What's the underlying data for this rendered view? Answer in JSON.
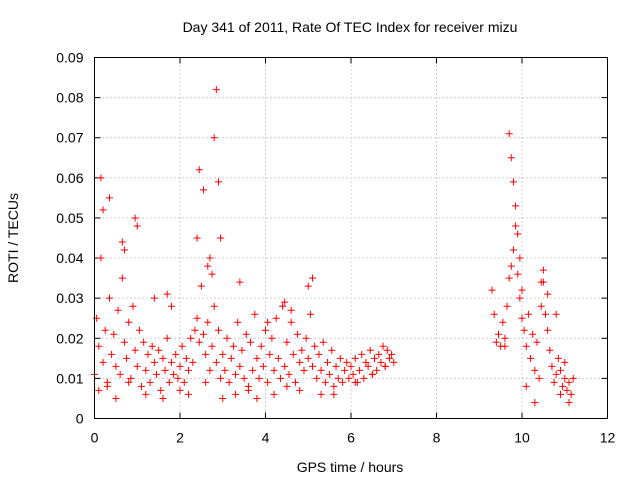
{
  "chart_data": {
    "type": "scatter",
    "title": "Day 341 of 2011, Rate Of TEC Index for receiver mizu",
    "xlabel": "GPS time / hours",
    "ylabel": "ROTI / TECUs",
    "xlim": [
      0,
      12
    ],
    "ylim": [
      0,
      0.09
    ],
    "x_ticks": [
      "0",
      "2",
      "4",
      "6",
      "8",
      "10",
      "12"
    ],
    "y_ticks": [
      "0",
      "0.01",
      "0.02",
      "0.03",
      "0.04",
      "0.05",
      "0.06",
      "0.07",
      "0.08",
      "0.09"
    ],
    "grid": true,
    "marker": "+",
    "series": [
      {
        "name": "ROTI",
        "color": "#ff0000",
        "x": [
          0.0,
          0.05,
          0.1,
          0.15,
          0.2,
          0.25,
          0.3,
          0.35,
          0.4,
          0.45,
          0.5,
          0.55,
          0.6,
          0.65,
          0.7,
          0.75,
          0.8,
          0.85,
          0.9,
          0.95,
          1.0,
          1.05,
          1.1,
          1.15,
          1.2,
          1.25,
          1.3,
          1.35,
          1.4,
          1.45,
          1.5,
          1.55,
          1.6,
          1.65,
          1.7,
          1.75,
          1.8,
          1.85,
          1.9,
          1.95,
          2.0,
          2.05,
          2.1,
          2.15,
          2.2,
          2.25,
          2.3,
          2.35,
          2.4,
          2.45,
          2.5,
          2.55,
          2.6,
          2.65,
          2.7,
          2.75,
          2.8,
          2.85,
          2.9,
          2.95,
          3.0,
          3.05,
          3.1,
          3.15,
          3.2,
          3.25,
          3.3,
          3.35,
          3.4,
          3.45,
          3.5,
          3.55,
          3.6,
          3.65,
          3.7,
          3.75,
          3.8,
          3.85,
          3.9,
          3.95,
          4.0,
          4.05,
          4.1,
          4.15,
          4.2,
          4.25,
          4.3,
          4.35,
          4.4,
          4.45,
          4.5,
          4.55,
          4.6,
          4.65,
          4.7,
          4.75,
          4.8,
          4.85,
          4.9,
          4.95,
          5.0,
          5.05,
          5.1,
          5.15,
          5.2,
          5.25,
          5.3,
          5.35,
          5.4,
          5.45,
          5.5,
          5.55,
          5.6,
          5.65,
          5.7,
          5.75,
          5.8,
          5.85,
          5.9,
          5.95,
          6.0,
          6.05,
          6.1,
          6.15,
          6.2,
          6.25,
          6.3,
          6.35,
          6.4,
          6.45,
          6.5,
          6.55,
          6.6,
          6.65,
          6.7,
          6.75,
          6.8,
          6.85,
          6.9,
          6.95,
          7.0,
          9.3,
          9.35,
          9.4,
          9.45,
          9.5,
          9.55,
          9.6,
          9.65,
          9.7,
          9.75,
          9.8,
          9.85,
          9.9,
          9.95,
          10.0,
          10.05,
          10.1,
          10.15,
          10.2,
          10.25,
          10.3,
          10.35,
          10.4,
          10.45,
          10.5,
          10.55,
          10.6,
          10.65,
          10.7,
          10.75,
          10.8,
          10.85,
          10.9,
          10.95,
          11.0,
          11.05,
          11.1,
          11.15,
          11.2,
          0.15,
          0.2,
          0.35,
          0.65,
          0.7,
          0.95,
          1.0,
          1.4,
          1.7,
          1.8,
          2.4,
          2.45,
          2.55,
          2.65,
          2.7,
          2.75,
          2.8,
          2.85,
          2.9,
          2.95,
          3.4,
          4.05,
          4.45,
          4.6,
          5.0,
          5.1,
          9.7,
          9.75,
          9.8,
          9.85,
          9.9,
          9.95,
          10.0,
          10.45,
          10.5,
          10.6,
          10.8,
          11.0,
          0.1,
          0.3,
          0.5,
          0.8,
          1.2,
          1.6,
          2.0,
          2.2,
          2.6,
          3.0,
          3.3,
          3.6,
          3.8,
          4.2,
          4.5,
          4.8,
          5.3,
          5.6,
          6.1,
          6.5,
          6.8,
          9.6,
          10.1,
          10.3,
          10.9,
          11.1
        ],
        "y": [
          0.011,
          0.025,
          0.018,
          0.04,
          0.014,
          0.022,
          0.009,
          0.03,
          0.016,
          0.021,
          0.013,
          0.027,
          0.011,
          0.035,
          0.019,
          0.015,
          0.024,
          0.01,
          0.028,
          0.017,
          0.013,
          0.022,
          0.008,
          0.019,
          0.012,
          0.016,
          0.009,
          0.018,
          0.014,
          0.011,
          0.017,
          0.007,
          0.015,
          0.012,
          0.02,
          0.009,
          0.014,
          0.011,
          0.016,
          0.01,
          0.013,
          0.018,
          0.009,
          0.015,
          0.012,
          0.02,
          0.014,
          0.022,
          0.025,
          0.019,
          0.033,
          0.021,
          0.016,
          0.024,
          0.012,
          0.018,
          0.028,
          0.014,
          0.022,
          0.01,
          0.016,
          0.012,
          0.02,
          0.009,
          0.015,
          0.018,
          0.011,
          0.024,
          0.013,
          0.017,
          0.01,
          0.021,
          0.008,
          0.019,
          0.012,
          0.026,
          0.015,
          0.01,
          0.018,
          0.013,
          0.022,
          0.009,
          0.016,
          0.02,
          0.012,
          0.025,
          0.015,
          0.01,
          0.028,
          0.013,
          0.019,
          0.011,
          0.024,
          0.016,
          0.009,
          0.021,
          0.014,
          0.017,
          0.012,
          0.02,
          0.015,
          0.026,
          0.013,
          0.018,
          0.01,
          0.016,
          0.012,
          0.019,
          0.009,
          0.014,
          0.011,
          0.017,
          0.008,
          0.013,
          0.01,
          0.015,
          0.009,
          0.012,
          0.014,
          0.01,
          0.013,
          0.011,
          0.015,
          0.009,
          0.012,
          0.016,
          0.01,
          0.014,
          0.013,
          0.017,
          0.011,
          0.015,
          0.012,
          0.016,
          0.014,
          0.018,
          0.013,
          0.017,
          0.015,
          0.016,
          0.014,
          0.032,
          0.026,
          0.019,
          0.021,
          0.018,
          0.024,
          0.02,
          0.028,
          0.035,
          0.038,
          0.042,
          0.048,
          0.036,
          0.03,
          0.025,
          0.022,
          0.018,
          0.026,
          0.015,
          0.021,
          0.012,
          0.019,
          0.01,
          0.028,
          0.034,
          0.026,
          0.022,
          0.017,
          0.013,
          0.009,
          0.011,
          0.015,
          0.012,
          0.008,
          0.01,
          0.007,
          0.009,
          0.006,
          0.01,
          0.06,
          0.052,
          0.055,
          0.044,
          0.042,
          0.05,
          0.048,
          0.03,
          0.031,
          0.028,
          0.045,
          0.062,
          0.057,
          0.038,
          0.04,
          0.036,
          0.07,
          0.082,
          0.059,
          0.045,
          0.034,
          0.024,
          0.029,
          0.027,
          0.033,
          0.035,
          0.071,
          0.065,
          0.059,
          0.053,
          0.046,
          0.04,
          0.032,
          0.034,
          0.037,
          0.031,
          0.026,
          0.014,
          0.007,
          0.008,
          0.005,
          0.009,
          0.006,
          0.005,
          0.007,
          0.006,
          0.009,
          0.005,
          0.006,
          0.007,
          0.005,
          0.006,
          0.008,
          0.007,
          0.006,
          0.006,
          0.009,
          0.011,
          0.013,
          0.018,
          0.008,
          0.004,
          0.006,
          0.004
        ]
      }
    ]
  }
}
